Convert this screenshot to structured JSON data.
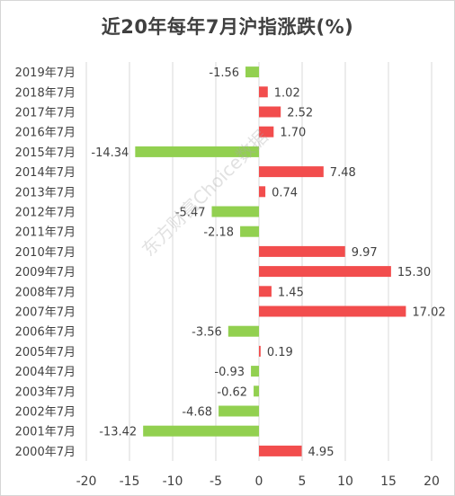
{
  "title": "近20年每年7月沪指涨跌(%)",
  "watermark": "东方财富Choice数据",
  "colors": {
    "positive": "#f24d4d",
    "negative": "#92d050",
    "grid": "#d9d9d9",
    "text": "#404040"
  },
  "chart_data": {
    "type": "bar",
    "orientation": "horizontal",
    "title": "近20年每年7月沪指涨跌(%)",
    "categories": [
      "2019年7月",
      "2018年7月",
      "2017年7月",
      "2016年7月",
      "2015年7月",
      "2014年7月",
      "2013年7月",
      "2012年7月",
      "2011年7月",
      "2010年7月",
      "2009年7月",
      "2008年7月",
      "2007年7月",
      "2006年7月",
      "2005年7月",
      "2004年7月",
      "2003年7月",
      "2002年7月",
      "2001年7月",
      "2000年7月"
    ],
    "values": [
      -1.56,
      1.02,
      2.52,
      1.7,
      -14.34,
      7.48,
      0.74,
      -5.47,
      -2.18,
      9.97,
      15.3,
      1.45,
      17.02,
      -3.56,
      0.19,
      -0.93,
      -0.62,
      -4.68,
      -13.42,
      4.95
    ],
    "labels": [
      "-1.56",
      "1.02",
      "2.52",
      "1.70",
      "-14.34",
      "7.48",
      "0.74",
      "-5.47",
      "-2.18",
      "9.97",
      "15.30",
      "1.45",
      "17.02",
      "-3.56",
      "0.19",
      "-0.93",
      "-0.62",
      "-4.68",
      "-13.42",
      "4.95"
    ],
    "xlim": [
      -20,
      20
    ],
    "xticks": [
      "-20",
      "-15",
      "-10",
      "-5",
      "0",
      "5",
      "10",
      "15",
      "20"
    ],
    "grid": true
  }
}
